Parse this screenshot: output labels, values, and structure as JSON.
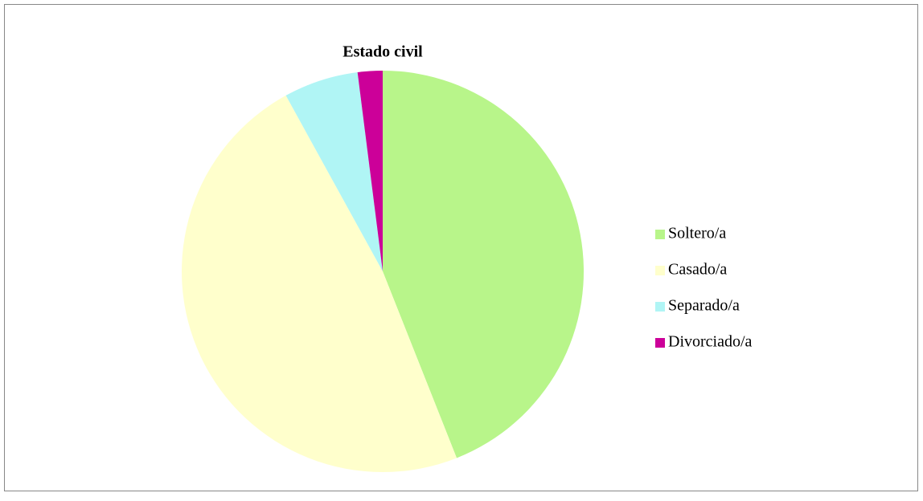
{
  "chart_data": {
    "type": "pie",
    "title": "Estado civil",
    "categories": [
      "Soltero/a",
      "Casado/a",
      "Separado/a",
      "Divorciado/a"
    ],
    "values": [
      44,
      48,
      6,
      2
    ],
    "colors": [
      "#b8f58a",
      "#ffffcc",
      "#b0f5f5",
      "#cc0099"
    ],
    "legend": "right"
  }
}
